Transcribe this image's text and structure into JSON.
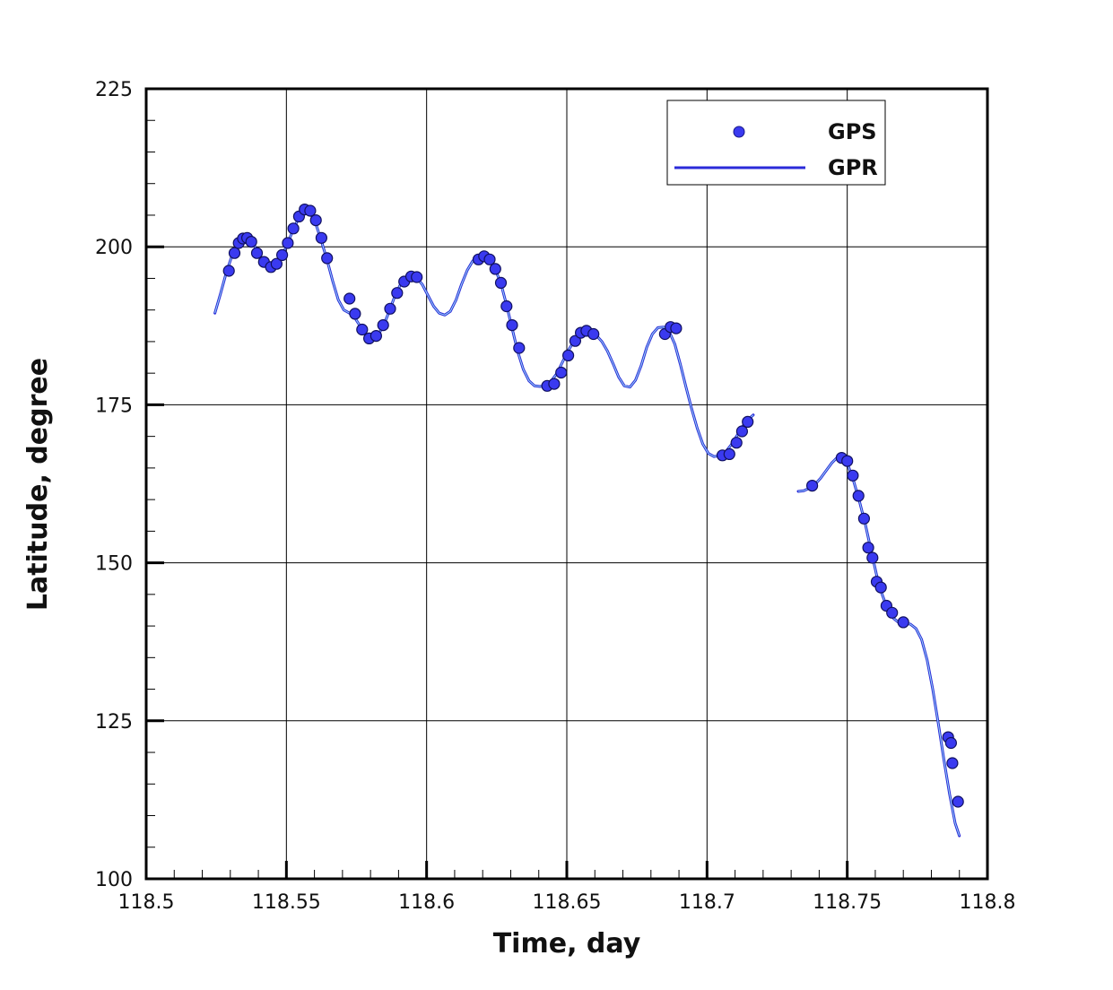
{
  "chart_data": {
    "type": "line",
    "title": "",
    "xlabel": "Time, day",
    "ylabel": "Latitude, degree",
    "xlim": [
      118.5,
      118.8
    ],
    "ylim": [
      100,
      225
    ],
    "x_ticks": [
      "118.5",
      "118.55",
      "118.6",
      "118.65",
      "118.7",
      "118.75",
      "118.8"
    ],
    "y_ticks": [
      "100",
      "125",
      "150",
      "175",
      "200",
      "225"
    ],
    "grid": true,
    "legend_position": "top-right",
    "colors": {
      "gps_marker": "#3a3af0",
      "gpr_line": "#2b2bd9",
      "gpr_highlight": "#9ad8f5",
      "axis": "#000000",
      "grid": "#000000"
    },
    "series": [
      {
        "name": "GPS",
        "style": "scatter",
        "points": [
          [
            118.5295,
            196.2
          ],
          [
            118.5315,
            199.0
          ],
          [
            118.533,
            200.6
          ],
          [
            118.5345,
            201.3
          ],
          [
            118.536,
            201.4
          ],
          [
            118.5375,
            200.8
          ],
          [
            118.5395,
            199.0
          ],
          [
            118.542,
            197.6
          ],
          [
            118.5445,
            196.8
          ],
          [
            118.5465,
            197.3
          ],
          [
            118.5485,
            198.7
          ],
          [
            118.5505,
            200.6
          ],
          [
            118.5525,
            202.9
          ],
          [
            118.5545,
            204.8
          ],
          [
            118.5565,
            205.9
          ],
          [
            118.5585,
            205.7
          ],
          [
            118.5605,
            204.2
          ],
          [
            118.5625,
            201.4
          ],
          [
            118.5645,
            198.2
          ],
          [
            118.5725,
            191.8
          ],
          [
            118.5745,
            189.4
          ],
          [
            118.577,
            186.9
          ],
          [
            118.5795,
            185.5
          ],
          [
            118.582,
            185.9
          ],
          [
            118.5845,
            187.6
          ],
          [
            118.587,
            190.2
          ],
          [
            118.5895,
            192.7
          ],
          [
            118.592,
            194.5
          ],
          [
            118.5945,
            195.3
          ],
          [
            118.5965,
            195.2
          ],
          [
            118.6185,
            198.0
          ],
          [
            118.6205,
            198.5
          ],
          [
            118.6225,
            198.0
          ],
          [
            118.6245,
            196.5
          ],
          [
            118.6265,
            194.3
          ],
          [
            118.6285,
            190.6
          ],
          [
            118.6305,
            187.6
          ],
          [
            118.633,
            184.0
          ],
          [
            118.643,
            178.0
          ],
          [
            118.6455,
            178.3
          ],
          [
            118.648,
            180.1
          ],
          [
            118.6505,
            182.8
          ],
          [
            118.653,
            185.1
          ],
          [
            118.655,
            186.4
          ],
          [
            118.657,
            186.7
          ],
          [
            118.6595,
            186.2
          ],
          [
            118.685,
            186.2
          ],
          [
            118.687,
            187.3
          ],
          [
            118.689,
            187.1
          ],
          [
            118.7055,
            167.0
          ],
          [
            118.708,
            167.2
          ],
          [
            118.7105,
            169.0
          ],
          [
            118.7125,
            170.8
          ],
          [
            118.7145,
            172.3
          ],
          [
            118.7375,
            162.2
          ],
          [
            118.748,
            166.6
          ],
          [
            118.75,
            166.1
          ],
          [
            118.752,
            163.8
          ],
          [
            118.754,
            160.6
          ],
          [
            118.756,
            157.0
          ],
          [
            118.7575,
            152.4
          ],
          [
            118.759,
            150.8
          ],
          [
            118.7605,
            147.0
          ],
          [
            118.762,
            146.1
          ],
          [
            118.764,
            143.2
          ],
          [
            118.766,
            142.1
          ],
          [
            118.77,
            140.6
          ],
          [
            118.786,
            122.4
          ],
          [
            118.787,
            121.5
          ],
          [
            118.7875,
            118.3
          ],
          [
            118.7895,
            112.2
          ]
        ]
      },
      {
        "name": "GPR",
        "style": "line",
        "segments": [
          [
            [
              118.5245,
              189.5
            ],
            [
              118.5265,
              192.6
            ],
            [
              118.5285,
              195.8
            ],
            [
              118.5305,
              198.5
            ],
            [
              118.5325,
              200.4
            ],
            [
              118.5345,
              201.4
            ],
            [
              118.5365,
              201.4
            ],
            [
              118.5385,
              200.2
            ],
            [
              118.5405,
              198.6
            ],
            [
              118.5425,
              197.4
            ],
            [
              118.5445,
              196.8
            ],
            [
              118.5465,
              197.2
            ],
            [
              118.5485,
              198.6
            ],
            [
              118.5505,
              200.6
            ],
            [
              118.5525,
              202.8
            ],
            [
              118.5545,
              204.6
            ],
            [
              118.5565,
              205.6
            ],
            [
              118.5585,
              205.3
            ],
            [
              118.5605,
              203.6
            ],
            [
              118.5625,
              200.9
            ],
            [
              118.5645,
              197.9
            ],
            [
              118.5665,
              194.6
            ],
            [
              118.5685,
              191.6
            ],
            [
              118.5705,
              190.0
            ],
            [
              118.5725,
              189.5
            ],
            [
              118.5745,
              188.7
            ],
            [
              118.5765,
              187.3
            ],
            [
              118.5785,
              185.9
            ],
            [
              118.5805,
              185.3
            ],
            [
              118.5825,
              185.9
            ],
            [
              118.5845,
              187.4
            ],
            [
              118.5865,
              189.6
            ],
            [
              118.5885,
              192.0
            ],
            [
              118.5905,
              193.9
            ],
            [
              118.5925,
              194.9
            ],
            [
              118.5945,
              195.2
            ],
            [
              118.5965,
              195.1
            ],
            [
              118.5985,
              194.0
            ],
            [
              118.6005,
              192.3
            ],
            [
              118.6025,
              190.6
            ],
            [
              118.6045,
              189.5
            ],
            [
              118.6065,
              189.2
            ],
            [
              118.6085,
              189.8
            ],
            [
              118.6105,
              191.6
            ],
            [
              118.6125,
              194.1
            ],
            [
              118.6145,
              196.3
            ],
            [
              118.6165,
              197.8
            ],
            [
              118.6185,
              198.4
            ],
            [
              118.6205,
              198.4
            ],
            [
              118.6225,
              197.8
            ],
            [
              118.6245,
              196.4
            ],
            [
              118.6265,
              194.2
            ],
            [
              118.6285,
              190.8
            ],
            [
              118.6305,
              187.1
            ],
            [
              118.6325,
              183.4
            ],
            [
              118.6345,
              180.6
            ],
            [
              118.6365,
              178.8
            ],
            [
              118.6385,
              178.0
            ],
            [
              118.6405,
              177.9
            ],
            [
              118.6425,
              178.1
            ],
            [
              118.6445,
              178.8
            ],
            [
              118.6465,
              180.0
            ],
            [
              118.6485,
              181.8
            ],
            [
              118.6505,
              183.6
            ],
            [
              118.6525,
              185.0
            ],
            [
              118.6545,
              186.0
            ],
            [
              118.6565,
              186.5
            ],
            [
              118.6585,
              186.5
            ],
            [
              118.6605,
              186.0
            ],
            [
              118.6625,
              185.0
            ],
            [
              118.6645,
              183.5
            ],
            [
              118.6665,
              181.5
            ],
            [
              118.6685,
              179.4
            ],
            [
              118.6705,
              178.0
            ],
            [
              118.6725,
              177.8
            ],
            [
              118.6745,
              178.9
            ],
            [
              118.6765,
              181.2
            ],
            [
              118.6785,
              184.1
            ],
            [
              118.6805,
              186.2
            ],
            [
              118.6825,
              187.2
            ],
            [
              118.6845,
              187.3
            ],
            [
              118.6865,
              186.6
            ],
            [
              118.6885,
              184.6
            ],
            [
              118.6905,
              181.4
            ],
            [
              118.6925,
              177.8
            ],
            [
              118.6945,
              174.4
            ],
            [
              118.6965,
              171.3
            ],
            [
              118.6985,
              168.8
            ],
            [
              118.7005,
              167.3
            ],
            [
              118.7025,
              166.8
            ],
            [
              118.7045,
              167.0
            ],
            [
              118.7065,
              167.5
            ],
            [
              118.7085,
              168.6
            ],
            [
              118.7105,
              170.0
            ],
            [
              118.7125,
              171.5
            ],
            [
              118.7145,
              172.6
            ],
            [
              118.7165,
              173.4
            ]
          ],
          [
            [
              118.7325,
              161.3
            ],
            [
              118.7345,
              161.4
            ],
            [
              118.7365,
              161.8
            ],
            [
              118.7385,
              162.4
            ],
            [
              118.7405,
              163.4
            ],
            [
              118.7425,
              164.6
            ],
            [
              118.7445,
              165.8
            ],
            [
              118.7465,
              166.7
            ],
            [
              118.7485,
              166.6
            ],
            [
              118.7505,
              165.2
            ],
            [
              118.7525,
              162.6
            ],
            [
              118.7545,
              159.5
            ],
            [
              118.7565,
              156.0
            ],
            [
              118.7585,
              152.0
            ],
            [
              118.7605,
              148.0
            ],
            [
              118.7625,
              144.9
            ],
            [
              118.7645,
              142.6
            ],
            [
              118.7665,
              141.2
            ],
            [
              118.7685,
              140.5
            ],
            [
              118.7705,
              140.4
            ],
            [
              118.7725,
              140.3
            ],
            [
              118.7745,
              139.6
            ],
            [
              118.7765,
              137.9
            ],
            [
              118.7785,
              134.6
            ],
            [
              118.7805,
              130.0
            ],
            [
              118.7825,
              124.5
            ],
            [
              118.7845,
              118.8
            ],
            [
              118.7865,
              113.4
            ],
            [
              118.7885,
              108.8
            ],
            [
              118.79,
              106.8
            ]
          ]
        ]
      }
    ]
  }
}
